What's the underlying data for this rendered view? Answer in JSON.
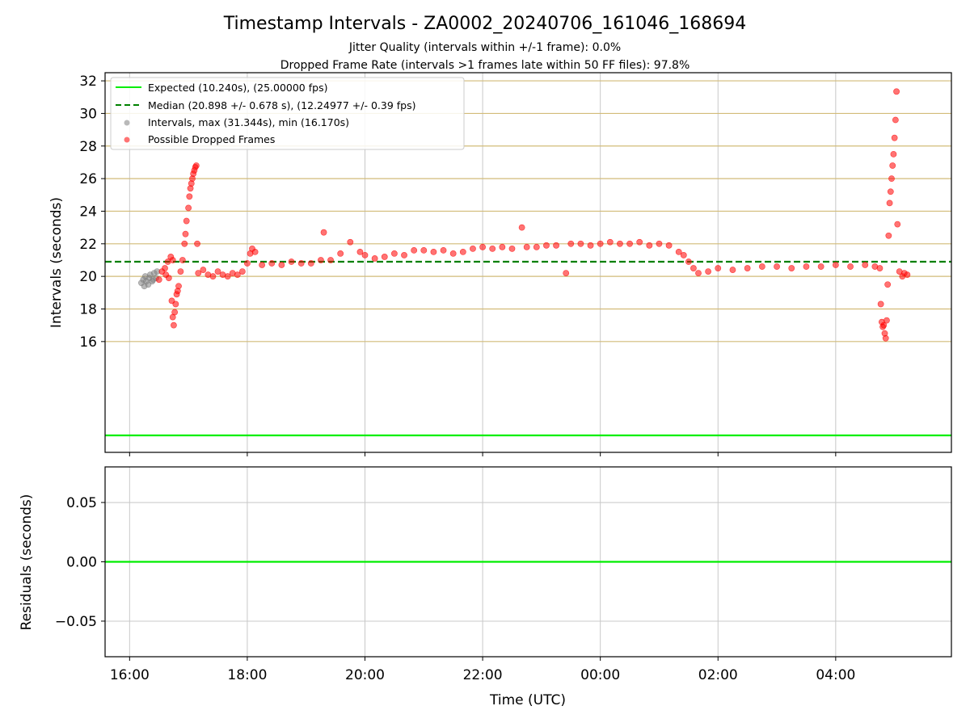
{
  "chart_data": [
    {
      "type": "scatter",
      "title": "Timestamp Intervals - ZA0002_20240706_161046_168694",
      "subtitles": [
        "Jitter Quality (intervals within +/-1 frame): 0.0%",
        "Dropped Frame Rate (intervals >1 frames late within 50 FF files): 97.8%"
      ],
      "xlabel": "",
      "ylabel": "Intervals (seconds)",
      "x_type": "time (UTC)",
      "xlim": [
        "15:35",
        "05:58"
      ],
      "ylim": [
        9.2,
        32.5
      ],
      "y_ticks": [
        16,
        18,
        20,
        22,
        24,
        26,
        28,
        30,
        32
      ],
      "x_tick_labels": [
        "16:00",
        "18:00",
        "20:00",
        "22:00",
        "00:00",
        "02:00",
        "04:00"
      ],
      "grid": "horizontal lines (tan) and vertical lines (gray)",
      "legend_position": "top-left",
      "legend": [
        "Expected (10.240s), (25.00000 fps)",
        "Median (20.898 +/- 0.678 s), (12.24977 +/- 0.39 fps)",
        "Intervals, max (31.344s), min (16.170s)",
        "Possible Dropped Frames"
      ],
      "colors": {
        "expected": "#00ee00",
        "median": "#008000",
        "intervals": "#808080",
        "dropped": "#ff0000",
        "hgrid": "#d2bb78",
        "vgrid": "#c8c8c8"
      },
      "lines": [
        {
          "name": "Expected",
          "y": 10.24
        },
        {
          "name": "Median",
          "y": 20.898
        }
      ],
      "series": [
        {
          "name": "Intervals",
          "points": [
            [
              "16:12",
              19.6
            ],
            [
              "16:14",
              19.8
            ],
            [
              "16:15",
              19.4
            ],
            [
              "16:16",
              20.0
            ],
            [
              "16:17",
              19.7
            ],
            [
              "16:19",
              19.5
            ],
            [
              "16:20",
              19.9
            ],
            [
              "16:21",
              20.1
            ],
            [
              "16:23",
              19.7
            ],
            [
              "16:24",
              19.8
            ],
            [
              "16:25",
              20.2
            ],
            [
              "16:27",
              19.9
            ],
            [
              "16:28",
              20.3
            ]
          ]
        },
        {
          "name": "Possible Dropped Frames",
          "points": [
            [
              "16:30",
              19.8
            ],
            [
              "16:33",
              20.3
            ],
            [
              "16:36",
              20.5
            ],
            [
              "16:39",
              20.9
            ],
            [
              "16:42",
              21.2
            ],
            [
              "16:44",
              21.0
            ],
            [
              "16:40",
              19.9
            ],
            [
              "16:37",
              20.1
            ],
            [
              "16:43",
              18.5
            ],
            [
              "16:44",
              17.5
            ],
            [
              "16:45",
              17.0
            ],
            [
              "16:46",
              17.8
            ],
            [
              "16:47",
              18.3
            ],
            [
              "16:48",
              18.9
            ],
            [
              "16:49",
              19.1
            ],
            [
              "16:50",
              19.4
            ],
            [
              "16:52",
              20.3
            ],
            [
              "16:54",
              21.0
            ],
            [
              "16:56",
              22.0
            ],
            [
              "16:57",
              22.6
            ],
            [
              "16:58",
              23.4
            ],
            [
              "17:00",
              24.2
            ],
            [
              "17:01",
              24.9
            ],
            [
              "17:02",
              25.4
            ],
            [
              "17:03",
              25.7
            ],
            [
              "17:04",
              26.0
            ],
            [
              "17:05",
              26.3
            ],
            [
              "17:06",
              26.5
            ],
            [
              "17:07",
              26.7
            ],
            [
              "17:08",
              26.8
            ],
            [
              "17:09",
              22.0
            ],
            [
              "17:10",
              20.2
            ],
            [
              "17:15",
              20.4
            ],
            [
              "17:20",
              20.1
            ],
            [
              "17:25",
              20.0
            ],
            [
              "17:30",
              20.3
            ],
            [
              "17:35",
              20.1
            ],
            [
              "17:40",
              20.0
            ],
            [
              "17:45",
              20.2
            ],
            [
              "17:50",
              20.1
            ],
            [
              "17:55",
              20.3
            ],
            [
              "18:00",
              20.8
            ],
            [
              "18:03",
              21.4
            ],
            [
              "18:05",
              21.7
            ],
            [
              "18:08",
              21.5
            ],
            [
              "18:15",
              20.7
            ],
            [
              "18:25",
              20.8
            ],
            [
              "18:35",
              20.7
            ],
            [
              "18:45",
              20.9
            ],
            [
              "18:55",
              20.8
            ],
            [
              "19:05",
              20.8
            ],
            [
              "19:15",
              21.0
            ],
            [
              "19:18",
              22.7
            ],
            [
              "19:25",
              21.0
            ],
            [
              "19:35",
              21.4
            ],
            [
              "19:45",
              22.1
            ],
            [
              "19:55",
              21.5
            ],
            [
              "20:00",
              21.3
            ],
            [
              "20:10",
              21.1
            ],
            [
              "20:20",
              21.2
            ],
            [
              "20:30",
              21.4
            ],
            [
              "20:40",
              21.3
            ],
            [
              "20:50",
              21.6
            ],
            [
              "21:00",
              21.6
            ],
            [
              "21:10",
              21.5
            ],
            [
              "21:20",
              21.6
            ],
            [
              "21:30",
              21.4
            ],
            [
              "21:40",
              21.5
            ],
            [
              "21:50",
              21.7
            ],
            [
              "22:00",
              21.8
            ],
            [
              "22:10",
              21.7
            ],
            [
              "22:20",
              21.8
            ],
            [
              "22:30",
              21.7
            ],
            [
              "22:40",
              23.0
            ],
            [
              "22:45",
              21.8
            ],
            [
              "22:55",
              21.8
            ],
            [
              "23:05",
              21.9
            ],
            [
              "23:15",
              21.9
            ],
            [
              "23:25",
              20.2
            ],
            [
              "23:30",
              22.0
            ],
            [
              "23:40",
              22.0
            ],
            [
              "23:50",
              21.9
            ],
            [
              "00:00",
              22.0
            ],
            [
              "00:10",
              22.1
            ],
            [
              "00:20",
              22.0
            ],
            [
              "00:30",
              22.0
            ],
            [
              "00:40",
              22.1
            ],
            [
              "00:50",
              21.9
            ],
            [
              "01:00",
              22.0
            ],
            [
              "01:10",
              21.9
            ],
            [
              "01:20",
              21.5
            ],
            [
              "01:25",
              21.3
            ],
            [
              "01:30",
              20.9
            ],
            [
              "01:35",
              20.5
            ],
            [
              "01:40",
              20.2
            ],
            [
              "01:50",
              20.3
            ],
            [
              "02:00",
              20.5
            ],
            [
              "02:15",
              20.4
            ],
            [
              "02:30",
              20.5
            ],
            [
              "02:45",
              20.6
            ],
            [
              "03:00",
              20.6
            ],
            [
              "03:15",
              20.5
            ],
            [
              "03:30",
              20.6
            ],
            [
              "03:45",
              20.6
            ],
            [
              "04:00",
              20.7
            ],
            [
              "04:15",
              20.6
            ],
            [
              "04:30",
              20.7
            ],
            [
              "04:40",
              20.6
            ],
            [
              "04:45",
              20.5
            ],
            [
              "04:46",
              18.3
            ],
            [
              "04:47",
              17.2
            ],
            [
              "04:48",
              16.9
            ],
            [
              "04:49",
              17.0
            ],
            [
              "04:50",
              16.5
            ],
            [
              "04:51",
              16.2
            ],
            [
              "04:52",
              17.3
            ],
            [
              "04:53",
              19.5
            ],
            [
              "04:54",
              22.5
            ],
            [
              "04:55",
              24.5
            ],
            [
              "04:56",
              25.2
            ],
            [
              "04:57",
              26.0
            ],
            [
              "04:58",
              26.8
            ],
            [
              "04:59",
              27.5
            ],
            [
              "05:00",
              28.5
            ],
            [
              "05:01",
              29.6
            ],
            [
              "05:02",
              31.344
            ],
            [
              "05:03",
              23.2
            ],
            [
              "05:05",
              20.3
            ],
            [
              "05:08",
              20.0
            ],
            [
              "05:10",
              20.2
            ],
            [
              "05:13",
              20.1
            ]
          ]
        }
      ]
    },
    {
      "type": "line",
      "xlabel": "Time (UTC)",
      "ylabel": "Residuals (seconds)",
      "x_type": "time (UTC)",
      "xlim": [
        "15:35",
        "05:58"
      ],
      "ylim": [
        -0.08,
        0.08
      ],
      "y_tick_labels": [
        "0.05",
        "0.00",
        "−0.05"
      ],
      "x_tick_labels": [
        "16:00",
        "18:00",
        "20:00",
        "22:00",
        "00:00",
        "02:00",
        "04:00"
      ],
      "grid": true,
      "series": [
        {
          "name": "Residuals",
          "x": [
            "15:35",
            "05:58"
          ],
          "values": [
            0.0,
            0.0
          ]
        }
      ]
    }
  ]
}
